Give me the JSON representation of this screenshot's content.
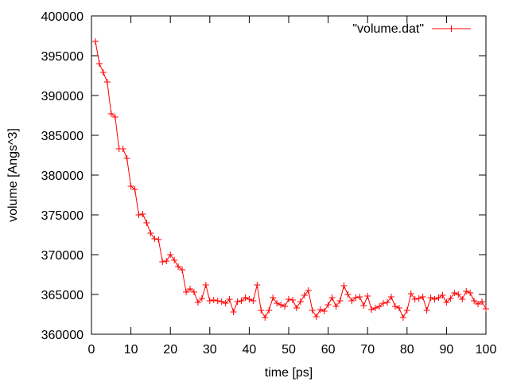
{
  "chart_data": {
    "type": "line",
    "title": "",
    "xlabel": "time [ps]",
    "ylabel": "volume [Angs^3]",
    "xlim": [
      0,
      100
    ],
    "ylim": [
      360000,
      400000
    ],
    "xticks": [
      0,
      10,
      20,
      30,
      40,
      50,
      60,
      70,
      80,
      90,
      100
    ],
    "yticks": [
      360000,
      365000,
      370000,
      375000,
      380000,
      385000,
      390000,
      395000,
      400000
    ],
    "grid": false,
    "legend_position": "top-right",
    "series": [
      {
        "name": "\"volume.dat\"",
        "color": "#ff0000",
        "marker": "plus",
        "x": [
          1,
          2,
          3,
          4,
          5,
          6,
          7,
          8,
          9,
          10,
          11,
          12,
          13,
          14,
          15,
          16,
          17,
          18,
          19,
          20,
          21,
          22,
          23,
          24,
          25,
          26,
          27,
          28,
          29,
          30,
          31,
          32,
          33,
          34,
          35,
          36,
          37,
          38,
          39,
          40,
          41,
          42,
          43,
          44,
          45,
          46,
          47,
          48,
          49,
          50,
          51,
          52,
          53,
          54,
          55,
          56,
          57,
          58,
          59,
          60,
          61,
          62,
          63,
          64,
          65,
          66,
          67,
          68,
          69,
          70,
          71,
          72,
          73,
          74,
          75,
          76,
          77,
          78,
          79,
          80,
          81,
          82,
          83,
          84,
          85,
          86,
          87,
          88,
          89,
          90,
          91,
          92,
          93,
          94,
          95,
          96,
          97,
          98,
          99,
          100
        ],
        "values": [
          396800,
          394000,
          392900,
          391700,
          387700,
          387300,
          383300,
          383300,
          382100,
          378600,
          378200,
          375000,
          375100,
          374000,
          372700,
          372000,
          371900,
          369100,
          369200,
          370000,
          369300,
          368500,
          368100,
          365300,
          365700,
          365300,
          364000,
          364500,
          366200,
          364200,
          364300,
          364200,
          364100,
          363900,
          364400,
          362800,
          364100,
          364200,
          364600,
          364400,
          364200,
          366200,
          363000,
          362100,
          363000,
          364600,
          363900,
          363700,
          363500,
          364400,
          364300,
          363300,
          364100,
          364900,
          365500,
          363000,
          362200,
          363100,
          362900,
          363700,
          364600,
          363500,
          364200,
          366100,
          365000,
          364200,
          364600,
          364700,
          363600,
          364800,
          363100,
          363300,
          363500,
          363900,
          364000,
          364700,
          363500,
          363300,
          362100,
          363000,
          365100,
          364400,
          364500,
          364700,
          363000,
          364600,
          364400,
          364600,
          364900,
          364000,
          364500,
          365200,
          365000,
          364400,
          365400,
          365200,
          364200,
          363800,
          364100,
          363200
        ]
      }
    ]
  }
}
